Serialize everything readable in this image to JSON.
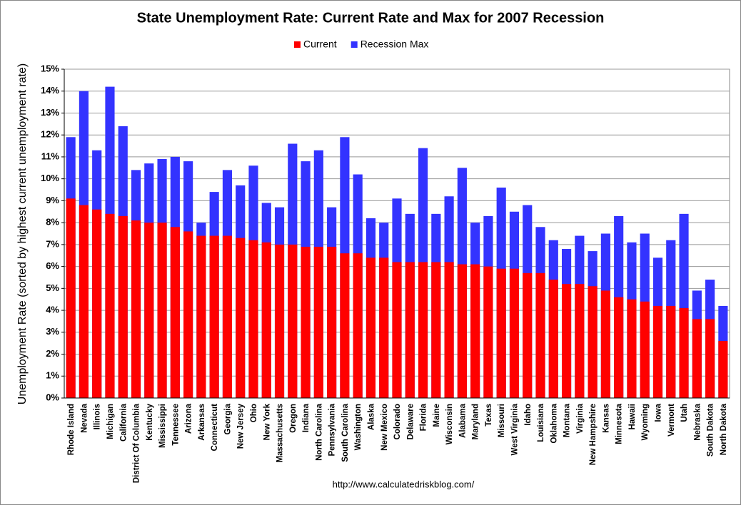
{
  "chart_data": {
    "type": "bar",
    "title": "State Unemployment Rate: Current Rate and Max for 2007 Recession",
    "y_label": "Unemployment Rate (sorted by highest current unemployment rate)",
    "source": "http://www.calculatedriskblog.com/",
    "categories": [
      "Rhode Island",
      "Nevada",
      "Illinois",
      "Michigan",
      "California",
      "District Of Columbia",
      "Kentucky",
      "Mississippi",
      "Tennessee",
      "Arizona",
      "Arkansas",
      "Connecticut",
      "Georgia",
      "New Jersey",
      "Ohio",
      "New York",
      "Massachusetts",
      "Oregon",
      "Indiana",
      "North Carolina",
      "Pennsylvania",
      "South Carolina",
      "Washington",
      "Alaska",
      "New Mexico",
      "Colorado",
      "Delaware",
      "Florida",
      "Maine",
      "Wisconsin",
      "Alabama",
      "Maryland",
      "Texas",
      "Missouri",
      "West Virginia",
      "Idaho",
      "Louisiana",
      "Oklahoma",
      "Montana",
      "Virginia",
      "New Hampshire",
      "Kansas",
      "Minnesota",
      "Hawaii",
      "Wyoming",
      "Iowa",
      "Vermont",
      "Utah",
      "Nebraska",
      "South Dakota",
      "North Dakota"
    ],
    "series": [
      {
        "name": "Current",
        "color": "#ff0000",
        "values": [
          9.1,
          8.8,
          8.6,
          8.4,
          8.3,
          8.1,
          8.0,
          8.0,
          7.8,
          7.6,
          7.4,
          7.4,
          7.4,
          7.3,
          7.2,
          7.1,
          7.0,
          7.0,
          6.9,
          6.9,
          6.9,
          6.6,
          6.6,
          6.4,
          6.4,
          6.2,
          6.2,
          6.2,
          6.2,
          6.2,
          6.1,
          6.1,
          6.0,
          5.9,
          5.9,
          5.7,
          5.7,
          5.4,
          5.2,
          5.2,
          5.1,
          4.9,
          4.6,
          4.5,
          4.4,
          4.2,
          4.2,
          4.1,
          3.6,
          3.6,
          2.6
        ]
      },
      {
        "name": "Recession Max",
        "color": "#3333ff",
        "values": [
          11.9,
          14.0,
          11.3,
          14.2,
          12.4,
          10.4,
          10.7,
          10.9,
          11.0,
          10.8,
          8.0,
          9.4,
          10.4,
          9.7,
          10.6,
          8.9,
          8.7,
          11.6,
          10.8,
          11.3,
          8.7,
          11.9,
          10.2,
          8.2,
          8.0,
          9.1,
          8.4,
          11.4,
          8.4,
          9.2,
          10.5,
          8.0,
          8.3,
          9.6,
          8.5,
          8.8,
          7.8,
          7.2,
          6.8,
          7.4,
          6.7,
          7.5,
          8.3,
          7.1,
          7.5,
          6.4,
          7.2,
          8.4,
          4.9,
          5.4,
          4.2
        ]
      }
    ],
    "ylim": [
      0,
      15
    ],
    "yticks": [
      {
        "value": 0,
        "label": "0%"
      },
      {
        "value": 1,
        "label": "1%"
      },
      {
        "value": 2,
        "label": "2%"
      },
      {
        "value": 3,
        "label": "3%"
      },
      {
        "value": 4,
        "label": "4%"
      },
      {
        "value": 5,
        "label": "5%"
      },
      {
        "value": 6,
        "label": "6%"
      },
      {
        "value": 7,
        "label": "7%"
      },
      {
        "value": 8,
        "label": "8%"
      },
      {
        "value": 9,
        "label": "9%"
      },
      {
        "value": 10,
        "label": "10%"
      },
      {
        "value": 11,
        "label": "11%"
      },
      {
        "value": 12,
        "label": "12%"
      },
      {
        "value": 13,
        "label": "13%"
      },
      {
        "value": 14,
        "label": "14%"
      },
      {
        "value": 15,
        "label": "15%"
      }
    ],
    "grid": true
  }
}
